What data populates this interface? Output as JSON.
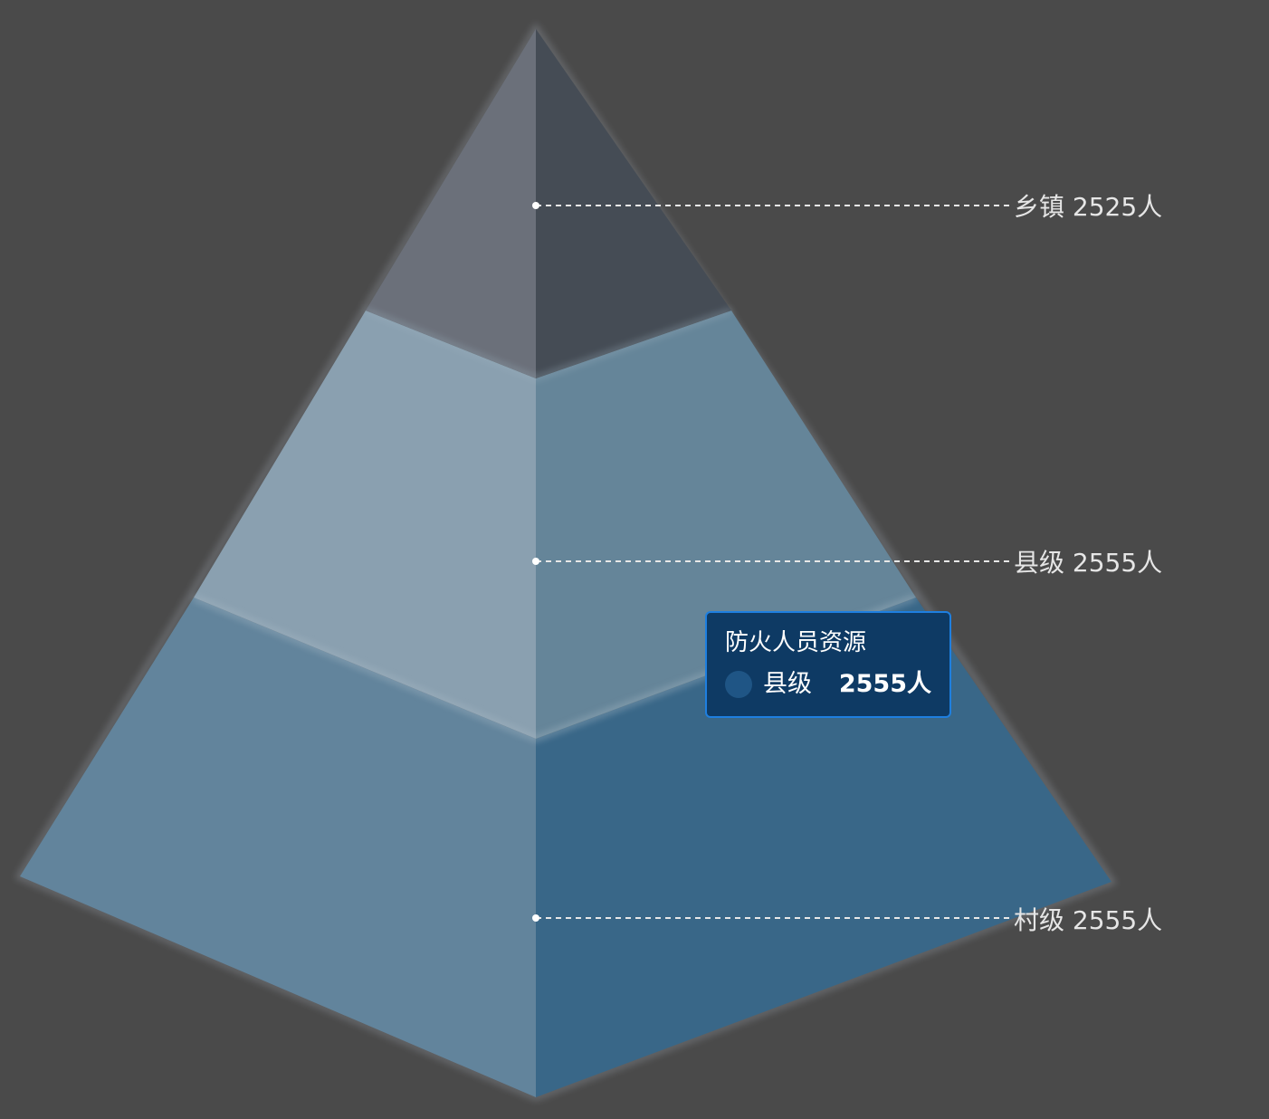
{
  "chart_data": {
    "type": "pyramid",
    "title": "",
    "series_name": "防火人员资源",
    "unit": "人",
    "categories": [
      "乡镇",
      "县级",
      "村级"
    ],
    "values": [
      2525,
      2555,
      2555
    ],
    "labels": [
      "乡镇 2525人",
      "县级 2555人",
      "村级 2555人"
    ],
    "colors": {
      "top_left": "#6b707a",
      "top_right": "#454c55",
      "middle_left": "#8aa0b0",
      "middle_right": "#658599",
      "bottom_left": "#62849c",
      "bottom_right": "#396788"
    }
  },
  "tooltip": {
    "title": "防火人员资源",
    "name": "县级",
    "value": "2555人"
  }
}
